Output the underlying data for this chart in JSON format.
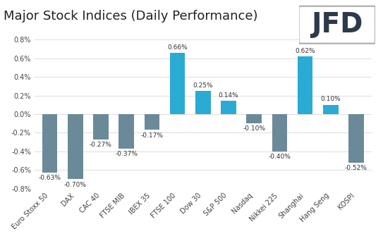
{
  "title": "Major Stock Indices (Daily Performance)",
  "categories": [
    "Euro Stoxx 50",
    "DAX",
    "CAC 40",
    "FTSE MIB",
    "IBEX 35",
    "FTSE 100",
    "Dow 30",
    "S&P 500",
    "Nasdaq",
    "Nikkei 225",
    "Shanghai",
    "Hang Seng",
    "KOSPI"
  ],
  "values": [
    -0.63,
    -0.7,
    -0.27,
    -0.37,
    -0.17,
    0.66,
    0.25,
    0.14,
    -0.1,
    -0.4,
    0.62,
    0.1,
    -0.52
  ],
  "bar_colors_positive": "#29ABD4",
  "bar_colors_negative": "#6B8A99",
  "ylim": [
    -0.8,
    0.8
  ],
  "ytick_values": [
    -0.8,
    -0.6,
    -0.4,
    -0.2,
    0.0,
    0.2,
    0.4,
    0.6,
    0.8
  ],
  "title_fontsize": 13,
  "label_fontsize": 6.5,
  "tick_fontsize": 7,
  "background_color": "#FFFFFF",
  "grid_color": "#D8D8D8",
  "logo_text": "JFD",
  "logo_fontsize": 28,
  "logo_color": "#2D3A4A"
}
